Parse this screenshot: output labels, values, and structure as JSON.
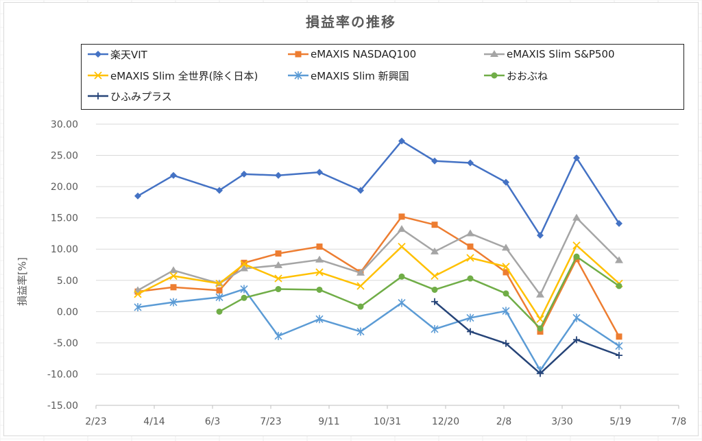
{
  "chart_data": {
    "type": "line",
    "title": "損益率の推移",
    "ylabel": "損益率[%]",
    "xlabel": "",
    "ylim": [
      -15,
      30
    ],
    "ytick_step": 5,
    "y_decimals": 2,
    "x_ticks": [
      "2/23",
      "4/14",
      "6/3",
      "7/23",
      "9/11",
      "10/31",
      "12/20",
      "2/8",
      "3/30",
      "5/19",
      "7/8"
    ],
    "grid": true,
    "legend_position": "top",
    "categories": [
      "3/27",
      "5/1",
      "6/3",
      "6/18",
      "7/23",
      "8/28",
      "10/1",
      "11/8",
      "12/14",
      "1/19",
      "2/12",
      "3/10",
      "4/7",
      "5/19"
    ],
    "series": [
      {
        "name": "楽天VIT",
        "color": "#4472C4",
        "marker": "diamond",
        "values": [
          18.5,
          21.8,
          19.4,
          22.0,
          21.8,
          22.3,
          19.4,
          27.3,
          24.1,
          23.8,
          20.7,
          12.2,
          24.6,
          14.1
        ]
      },
      {
        "name": "eMAXIS NASDAQ100",
        "color": "#ED7D31",
        "marker": "square",
        "values": [
          3.2,
          3.9,
          3.4,
          7.8,
          9.3,
          10.4,
          6.3,
          15.2,
          13.9,
          10.4,
          6.3,
          -3.2,
          8.4,
          -4.0
        ]
      },
      {
        "name": "eMAXIS Slim S&P500",
        "color": "#A5A5A5",
        "marker": "triangle",
        "values": [
          3.4,
          6.6,
          4.5,
          6.9,
          7.4,
          8.3,
          6.2,
          13.2,
          9.6,
          12.5,
          10.2,
          2.7,
          15.0,
          8.2
        ]
      },
      {
        "name": "eMAXIS Slim 全世界(除く日本)",
        "color": "#FFC000",
        "marker": "x",
        "values": [
          2.8,
          5.7,
          4.5,
          7.6,
          5.3,
          6.3,
          4.1,
          10.4,
          5.7,
          8.6,
          7.2,
          -1.2,
          10.6,
          4.5
        ]
      },
      {
        "name": "eMAXIS Slim 新興国",
        "color": "#5B9BD5",
        "marker": "star",
        "values": [
          0.7,
          1.5,
          2.3,
          3.6,
          -3.9,
          -1.2,
          -3.2,
          1.4,
          -2.8,
          -1.0,
          0.1,
          -9.4,
          -1.0,
          -5.5
        ]
      },
      {
        "name": "おおぶね",
        "color": "#70AD47",
        "marker": "circle",
        "values": [
          null,
          null,
          0.0,
          2.2,
          3.6,
          3.5,
          0.8,
          5.6,
          3.5,
          5.3,
          2.9,
          -2.7,
          8.8,
          4.1
        ]
      },
      {
        "name": "ひふみプラス",
        "color": "#264478",
        "marker": "plus",
        "values": [
          null,
          null,
          null,
          null,
          null,
          null,
          null,
          null,
          1.6,
          -3.2,
          -5.1,
          -9.9,
          -4.5,
          -7.0
        ]
      }
    ]
  }
}
